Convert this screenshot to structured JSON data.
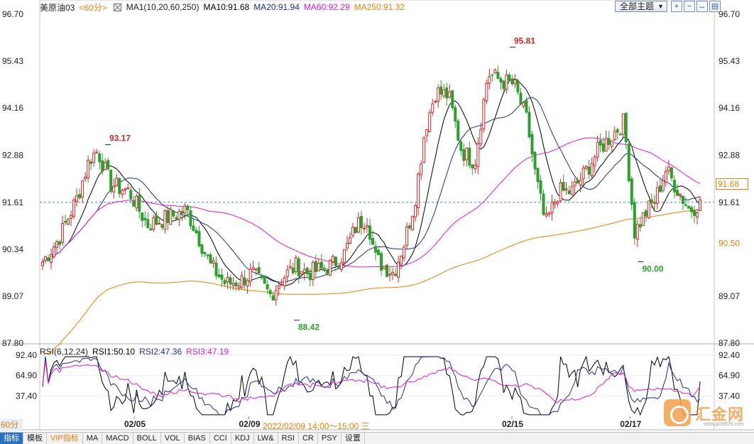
{
  "legend": {
    "symbol": "美原油03",
    "period": "<60分>",
    "ma_group": "MA1(10,20,60,250)",
    "ma10": "MA10:91.68",
    "ma20": "MA20:91.94",
    "ma60": "MA60:92.29",
    "ma250": "MA250:91.32"
  },
  "rsi_legend": {
    "name": "RSI(6,12,24)",
    "rsi1": "RSI1:50.10",
    "rsi2": "RSI2:47.36",
    "rsi3": "RSI3:47.19"
  },
  "toolbar": {
    "theme_label": "全部主题",
    "dropdown_arrow": "▼",
    "buttons": [
      "+",
      "−",
      "↔",
      "▤"
    ]
  },
  "last_price": "91.68",
  "timeframe": "60分 ▲",
  "range_text": "2022/02/09 14:00～15:00 三",
  "tabs": [
    "指标",
    "模板",
    "VIP指标",
    "MA",
    "MACD",
    "BOLL",
    "VOL",
    "BIAS",
    "CCI",
    "KDJ",
    "LW&",
    "RSI",
    "CR",
    "PSY",
    "设置"
  ],
  "watermark": {
    "name": "汇金网",
    "url": "www.gold678.com"
  },
  "colors": {
    "up": "#d62728",
    "down": "#2ca02c",
    "ma10": "#000000",
    "ma20": "#1f2f8c",
    "ma60": "#d91ad9",
    "ma250": "#e8800a",
    "accent": "#e8800a",
    "active_tab": "#2a6fc4"
  },
  "chart_data": {
    "type": "candlestick",
    "y_axis_left": [
      "96.70",
      "95.43",
      "94.16",
      "92.88",
      "91.61",
      "90.34",
      "89.07",
      "87.80"
    ],
    "y_axis_right": [
      "96.70",
      "95.43",
      "94.16",
      "92.88",
      "91.61",
      "91.68",
      "90.50",
      "89.07",
      "87.80"
    ],
    "ylim": [
      87.8,
      96.7
    ],
    "reference_line": 91.61,
    "x_labels": [
      "02/05",
      "02/09",
      "02/15",
      "02/17"
    ],
    "annotations": [
      {
        "text": "93.17",
        "value": 93.17,
        "kind": "high"
      },
      {
        "text": "88.42",
        "value": 88.42,
        "kind": "low"
      },
      {
        "text": "95.81",
        "value": 95.81,
        "kind": "high"
      },
      {
        "text": "90.00",
        "value": 90.0,
        "kind": "low"
      }
    ],
    "candles_count": 140,
    "rsi": {
      "y_axis_left": [
        "92.40",
        "64.90",
        "37.40"
      ],
      "y_axis_right": [
        "92.40",
        "64.90",
        "37.40"
      ],
      "ylim": [
        10,
        92.4
      ],
      "latest": {
        "RSI1": 50.1,
        "RSI2": 47.36,
        "RSI3": 47.19
      }
    }
  }
}
